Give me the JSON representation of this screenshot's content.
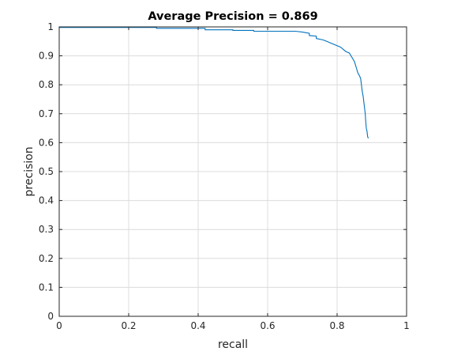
{
  "chart_data": {
    "type": "line",
    "title": "Average Precision = 0.869",
    "xlabel": "recall",
    "ylabel": "precision",
    "xlim": [
      0,
      1
    ],
    "ylim": [
      0,
      1
    ],
    "xticks": [
      0,
      0.2,
      0.4,
      0.6,
      0.8,
      1
    ],
    "xtick_labels": [
      "0",
      "0.2",
      "0.4",
      "0.6",
      "0.8",
      "1"
    ],
    "yticks": [
      0,
      0.1,
      0.2,
      0.3,
      0.4,
      0.5,
      0.6,
      0.7,
      0.8,
      0.9,
      1
    ],
    "ytick_labels": [
      "0",
      "0.1",
      "0.2",
      "0.3",
      "0.4",
      "0.5",
      "0.6",
      "0.7",
      "0.8",
      "0.9",
      "1"
    ],
    "grid": true,
    "series": [
      {
        "color": "#0072bd",
        "x": [
          0,
          0.28,
          0.28,
          0.42,
          0.42,
          0.5,
          0.5,
          0.56,
          0.56,
          0.68,
          0.7,
          0.72,
          0.72,
          0.74,
          0.74,
          0.76,
          0.77,
          0.78,
          0.79,
          0.8,
          0.81,
          0.82,
          0.825,
          0.835,
          0.84,
          0.845,
          0.85,
          0.855,
          0.86,
          0.865,
          0.868,
          0.87,
          0.872,
          0.875,
          0.877,
          0.879,
          0.881,
          0.882,
          0.884,
          0.886,
          0.888,
          0.89
        ],
        "y": [
          0.998,
          0.998,
          0.995,
          0.995,
          0.99,
          0.99,
          0.988,
          0.988,
          0.985,
          0.985,
          0.982,
          0.978,
          0.97,
          0.968,
          0.96,
          0.955,
          0.95,
          0.945,
          0.94,
          0.935,
          0.93,
          0.92,
          0.915,
          0.91,
          0.9,
          0.89,
          0.88,
          0.86,
          0.84,
          0.83,
          0.82,
          0.8,
          0.78,
          0.76,
          0.74,
          0.72,
          0.7,
          0.68,
          0.65,
          0.64,
          0.62,
          0.615
        ]
      }
    ]
  }
}
